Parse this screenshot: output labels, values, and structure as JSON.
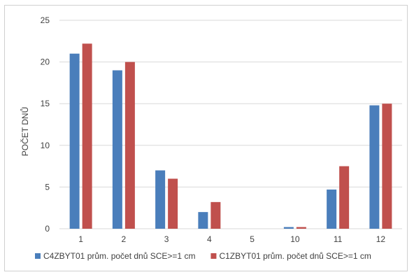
{
  "chart_data": {
    "type": "bar",
    "categories": [
      "1",
      "2",
      "3",
      "4",
      "5",
      "10",
      "11",
      "12"
    ],
    "series": [
      {
        "name": "C4ZBYT01 prům. počet dnů SCE>=1 cm",
        "color": "#4a7ebb",
        "values": [
          21,
          19,
          7,
          2,
          0,
          0.2,
          4.7,
          14.8
        ]
      },
      {
        "name": "C1ZBYT01 prům. počet dnů SCE>=1 cm",
        "color": "#c0504d",
        "values": [
          22.2,
          20,
          6,
          3.2,
          0,
          0.2,
          7.5,
          15
        ]
      }
    ],
    "ylabel": "POČET DNŮ",
    "xlabel": "",
    "ylim": [
      0,
      25
    ],
    "yticks": [
      0,
      5,
      10,
      15,
      20,
      25
    ],
    "grid": true,
    "gridline_color": "#d9d9d9",
    "legend_position": "bottom"
  }
}
